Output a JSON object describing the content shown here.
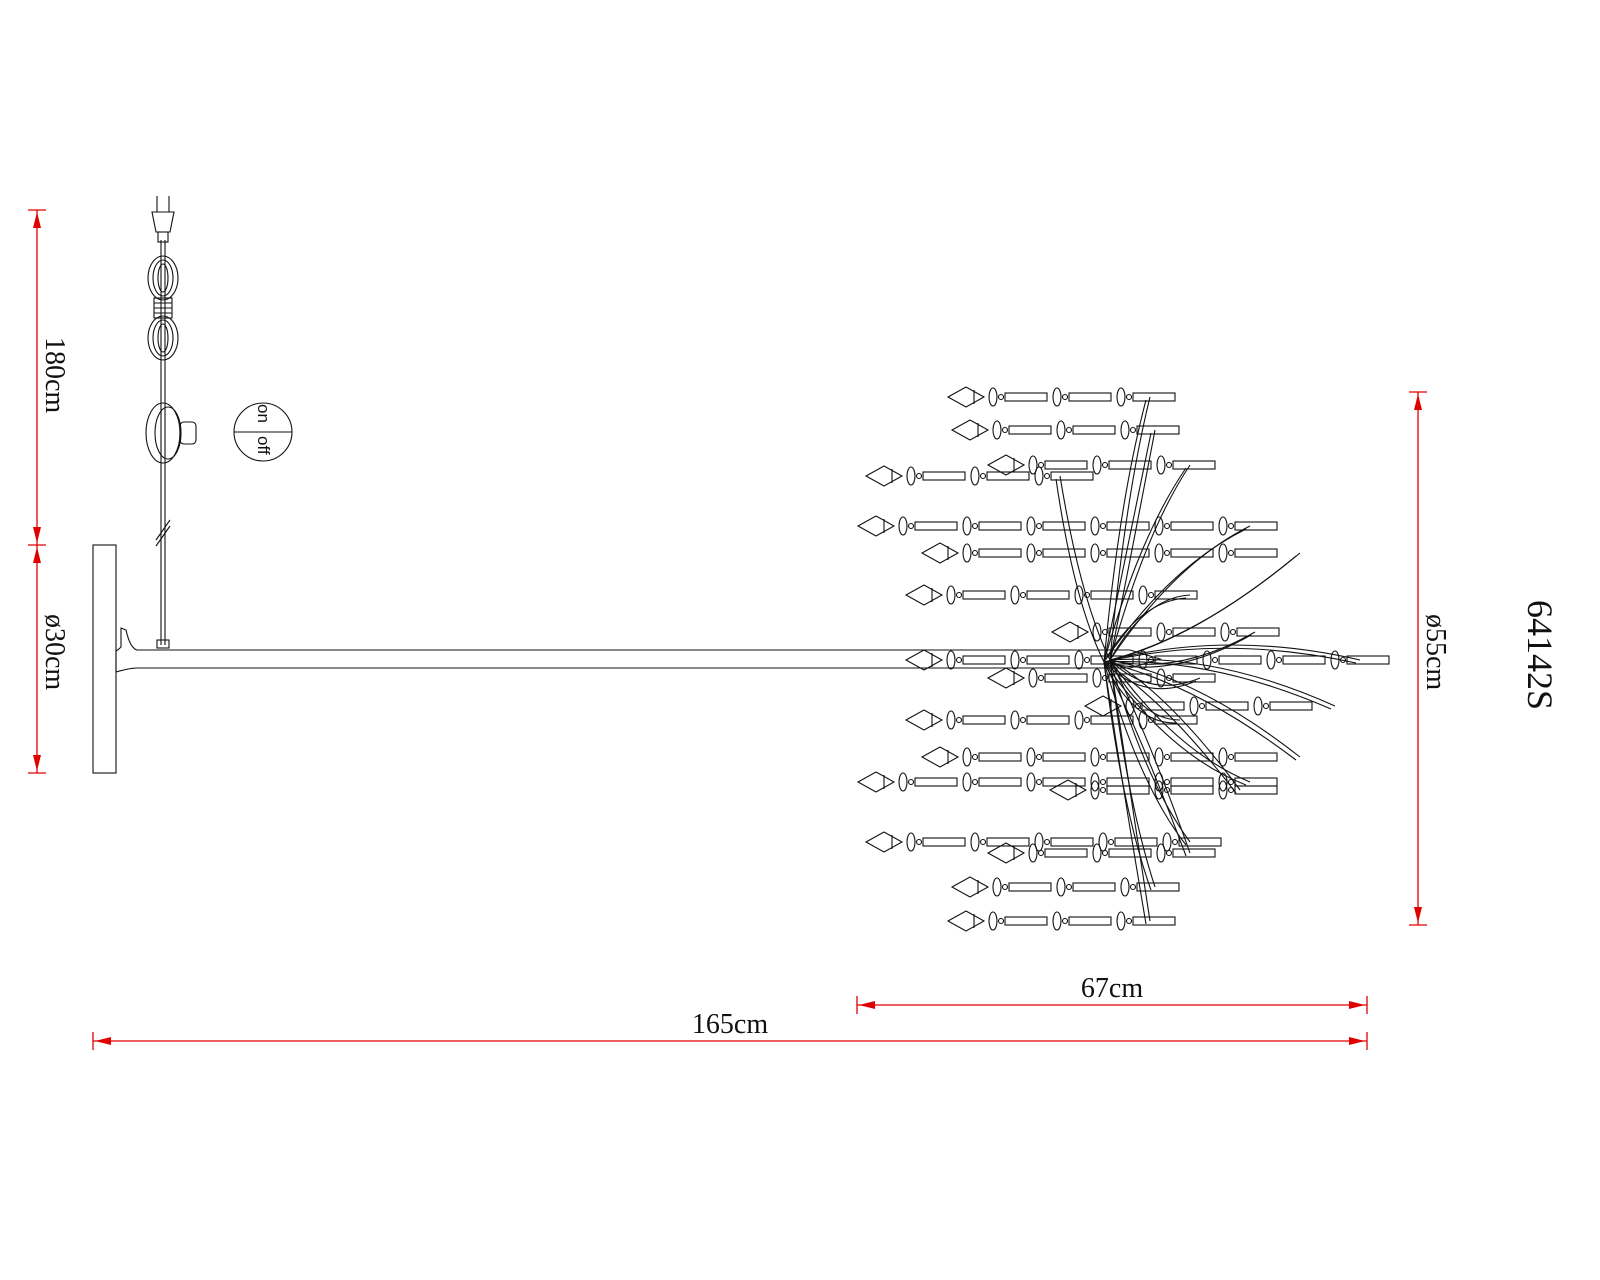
{
  "drawing": {
    "model_number": "64142S",
    "cord_length": "180cm",
    "base_diameter": "ø30cm",
    "shade_diameter": "ø55cm",
    "shade_width": "67cm",
    "total_width": "165cm",
    "switch_on": "on",
    "switch_off": "off"
  },
  "colors": {
    "dimension_line": "#e00000",
    "ink": "#111111"
  }
}
